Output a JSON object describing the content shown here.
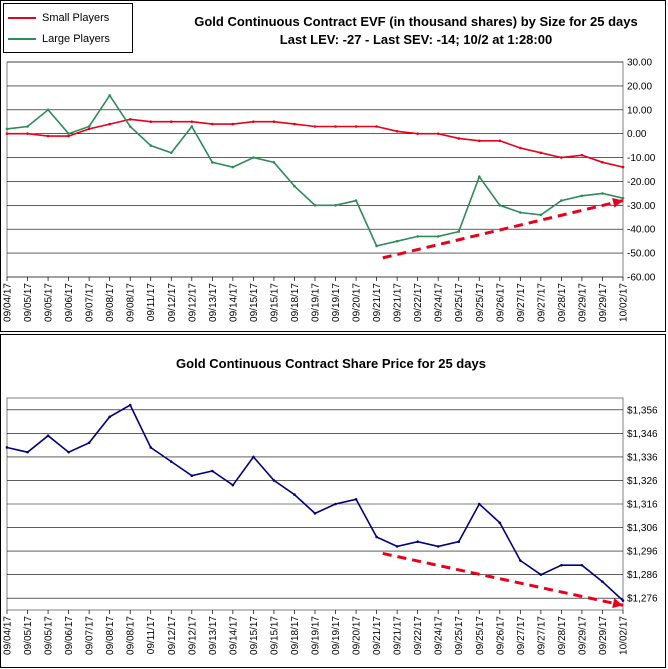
{
  "chart_data": [
    {
      "type": "line",
      "title": "Gold Continuous Contract EVF (in thousand shares) by Size for 25 days",
      "subtitle": "Last LEV: -27 - Last SEV: -14; 10/2 at 1:28:00",
      "xlabel": "",
      "ylabel": "",
      "y_side": "right",
      "ylim": [
        -60,
        30
      ],
      "y_ticks": [
        "30.00",
        "20.00",
        "10.00",
        "0.00",
        "-10.00",
        "-20.00",
        "-30.00",
        "-40.00",
        "-50.00",
        "-60.00"
      ],
      "y_tick_values": [
        30,
        20,
        10,
        0,
        -10,
        -20,
        -30,
        -40,
        -50,
        -60
      ],
      "grid": true,
      "legend": "top-left",
      "categories": [
        "09/04/17",
        "09/05/17",
        "09/05/17",
        "09/06/17",
        "09/07/17",
        "09/08/17",
        "09/08/17",
        "09/11/17",
        "09/12/17",
        "09/12/17",
        "09/13/17",
        "09/14/17",
        "09/15/17",
        "09/15/17",
        "09/18/17",
        "09/19/17",
        "09/19/17",
        "09/20/17",
        "09/21/17",
        "09/21/17",
        "09/22/17",
        "09/24/17",
        "09/25/17",
        "09/25/17",
        "09/26/17",
        "09/27/17",
        "09/27/17",
        "09/28/17",
        "09/29/17",
        "09/29/17",
        "10/02/17"
      ],
      "series": [
        {
          "name": "Small Players",
          "color": "#e8001c",
          "x": [
            0,
            1,
            2,
            3,
            4,
            5,
            6,
            7,
            8,
            9,
            10,
            11,
            12,
            13,
            14,
            15,
            16,
            17,
            18,
            19,
            20,
            21,
            22,
            23,
            24,
            25,
            26,
            27,
            28,
            29,
            30
          ],
          "values": [
            0,
            0,
            -1,
            -1,
            2,
            4,
            6,
            5,
            5,
            5,
            4,
            4,
            5,
            5,
            4,
            3,
            3,
            3,
            3,
            1,
            0,
            0,
            -2,
            -3,
            -3,
            -6,
            -8,
            -10,
            -9,
            -12,
            -14
          ]
        },
        {
          "name": "Large Players",
          "color": "#2e8b57",
          "x": [
            0,
            1,
            2,
            3,
            4,
            5,
            6,
            7,
            8,
            9,
            10,
            11,
            12,
            13,
            14,
            15,
            16,
            17,
            18,
            19,
            20,
            21,
            22,
            23,
            24,
            25,
            26,
            27,
            28,
            29,
            30
          ],
          "values": [
            2,
            3,
            10,
            0,
            3,
            16,
            3,
            -5,
            -8,
            3,
            -12,
            -14,
            -10,
            -12,
            -22,
            -30,
            -30,
            -28,
            -47,
            -45,
            -43,
            -43,
            -41,
            -18,
            -30,
            -33,
            -34,
            -28,
            -26,
            -25,
            -27
          ]
        }
      ],
      "annotations": [
        {
          "type": "dashed-trendline",
          "color": "#e8001c",
          "from": [
            18.3,
            -52
          ],
          "to": [
            30,
            -28
          ]
        }
      ]
    },
    {
      "type": "line",
      "title": "Gold Continuous Contract Share Price for 25 days",
      "subtitle": "",
      "xlabel": "",
      "ylabel": "",
      "y_side": "right",
      "ylim": [
        1271,
        1361
      ],
      "y_ticks": [
        "$1,356",
        "$1,346",
        "$1,336",
        "$1,326",
        "$1,316",
        "$1,306",
        "$1,296",
        "$1,286",
        "$1,276"
      ],
      "y_tick_values": [
        1356,
        1346,
        1336,
        1326,
        1316,
        1306,
        1296,
        1286,
        1276
      ],
      "grid": true,
      "legend": "none",
      "categories": [
        "09/04/17",
        "09/05/17",
        "09/05/17",
        "09/06/17",
        "09/07/17",
        "09/08/17",
        "09/08/17",
        "09/11/17",
        "09/12/17",
        "09/12/17",
        "09/13/17",
        "09/14/17",
        "09/15/17",
        "09/15/17",
        "09/18/17",
        "09/19/17",
        "09/19/17",
        "09/20/17",
        "09/21/17",
        "09/21/17",
        "09/22/17",
        "09/24/17",
        "09/25/17",
        "09/25/17",
        "09/26/17",
        "09/27/17",
        "09/27/17",
        "09/28/17",
        "09/29/17",
        "09/29/17",
        "10/02/17"
      ],
      "series": [
        {
          "name": "",
          "color": "#000080",
          "x": [
            0,
            1,
            2,
            3,
            4,
            5,
            6,
            7,
            8,
            9,
            10,
            11,
            12,
            13,
            14,
            15,
            16,
            17,
            18,
            19,
            20,
            21,
            22,
            23,
            24,
            25,
            26,
            27,
            28,
            29,
            30
          ],
          "values": [
            1340,
            1338,
            1345,
            1338,
            1342,
            1353,
            1358,
            1340,
            1334,
            1328,
            1330,
            1324,
            1336,
            1326,
            1320,
            1312,
            1316,
            1318,
            1302,
            1298,
            1300,
            1298,
            1300,
            1316,
            1308,
            1292,
            1286,
            1290,
            1290,
            1283,
            1275
          ]
        }
      ],
      "annotations": [
        {
          "type": "dashed-trendline",
          "color": "#e8001c",
          "from": [
            18.3,
            1295
          ],
          "to": [
            30,
            1273
          ]
        }
      ]
    }
  ]
}
